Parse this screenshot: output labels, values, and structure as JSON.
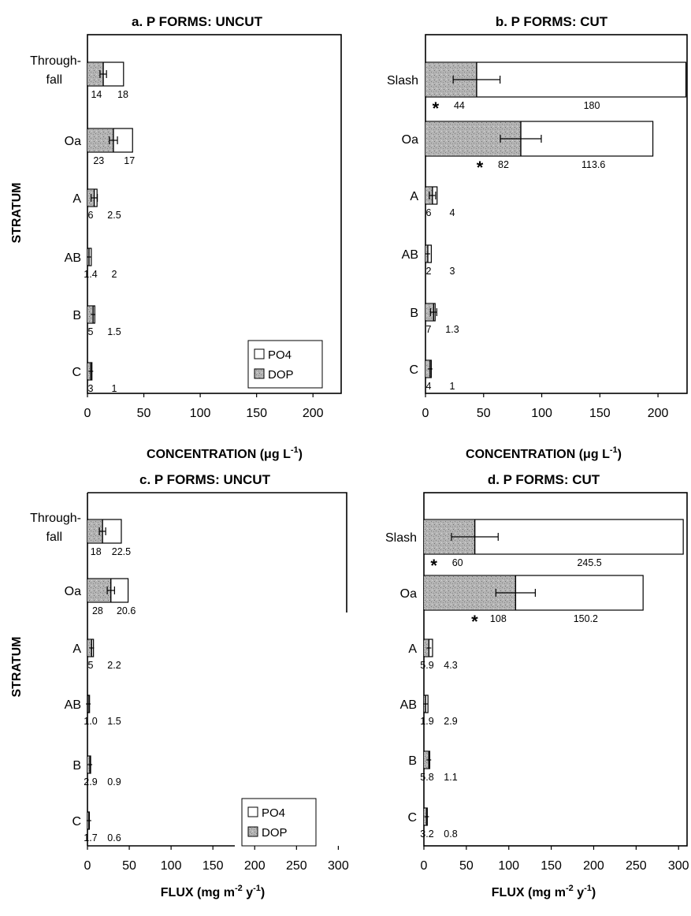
{
  "colors": {
    "po4_fill": "#ffffff",
    "dop_fill": "#a8a8a8",
    "stroke": "#000000"
  },
  "y_axis_label": "STRATUM",
  "chart_data": [
    {
      "type": "bar",
      "orientation": "horizontal",
      "stacked": true,
      "title": "a. P FORMS: UNCUT",
      "xlabel": "CONCENTRATION (μg L",
      "xlabel_sup": "-1",
      "xlabel_tail": ")",
      "ylabel": "STRATUM",
      "xlim": [
        0,
        225
      ],
      "xticks": [
        "0",
        "50",
        "100",
        "150",
        "200"
      ],
      "categories": [
        "Through-fall",
        "Oa",
        "A",
        "AB",
        "B",
        "C"
      ],
      "series": [
        {
          "name": "DOP",
          "values": [
            14,
            23,
            6,
            1.4,
            5,
            3
          ]
        },
        {
          "name": "PO4",
          "values": [
            18,
            17,
            2.5,
            2,
            1.5,
            1
          ]
        }
      ],
      "dop_labels": [
        "14",
        "23",
        "6",
        "1.4",
        "5",
        "3"
      ],
      "po4_labels": [
        "18",
        "17",
        "2.5",
        "2",
        "1.5",
        "1"
      ],
      "significant": [
        false,
        false,
        false,
        false,
        false,
        false
      ],
      "legend": {
        "position": "bottom-right",
        "entries": [
          "PO4",
          "DOP"
        ]
      },
      "grid": false
    },
    {
      "type": "bar",
      "orientation": "horizontal",
      "stacked": true,
      "title": "b. P FORMS: CUT",
      "xlabel": "CONCENTRATION (μg L",
      "xlabel_sup": "-1",
      "xlabel_tail": ")",
      "xlim": [
        0,
        225
      ],
      "xticks": [
        "0",
        "50",
        "100",
        "150",
        "200"
      ],
      "categories": [
        "Slash",
        "Oa",
        "A",
        "AB",
        "B",
        "C"
      ],
      "series": [
        {
          "name": "DOP",
          "values": [
            44,
            82,
            6,
            2,
            7,
            4
          ]
        },
        {
          "name": "PO4",
          "values": [
            180,
            113.6,
            4,
            3,
            1.3,
            1
          ]
        }
      ],
      "dop_labels": [
        "44",
        "82",
        "6",
        "2",
        "7",
        "4"
      ],
      "po4_labels": [
        "180",
        "113.6",
        "4",
        "3",
        "1.3",
        "1"
      ],
      "significant": [
        true,
        true,
        false,
        false,
        false,
        false
      ],
      "grid": false
    },
    {
      "type": "bar",
      "orientation": "horizontal",
      "stacked": true,
      "title": "c. P FORMS: UNCUT",
      "xlabel": "FLUX (mg m",
      "xlabel_sup": "-2",
      "xlabel_mid": " y",
      "xlabel_sup2": "-1",
      "xlabel_tail": ")",
      "ylabel": "STRATUM",
      "xlim": [
        0,
        310
      ],
      "xticks": [
        "0",
        "50",
        "100",
        "150",
        "200",
        "250",
        "300"
      ],
      "categories": [
        "Through-fall",
        "Oa",
        "A",
        "AB",
        "B",
        "C"
      ],
      "series": [
        {
          "name": "DOP",
          "values": [
            18,
            28,
            5,
            1.0,
            2.9,
            1.7
          ]
        },
        {
          "name": "PO4",
          "values": [
            22.5,
            20.6,
            2.2,
            1.5,
            0.9,
            0.6
          ]
        }
      ],
      "dop_labels": [
        "18",
        "28",
        "5",
        "1.0",
        "2.9",
        "1.7"
      ],
      "po4_labels": [
        "22.5",
        "20.6",
        "2.2",
        "1.5",
        "0.9",
        "0.6"
      ],
      "significant": [
        false,
        false,
        false,
        false,
        false,
        false
      ],
      "legend": {
        "position": "bottom-right",
        "entries": [
          "PO4",
          "DOP"
        ]
      },
      "grid": false
    },
    {
      "type": "bar",
      "orientation": "horizontal",
      "stacked": true,
      "title": "d. P FORMS: CUT",
      "xlabel": "FLUX (mg m",
      "xlabel_sup": "-2",
      "xlabel_mid": " y",
      "xlabel_sup2": "-1",
      "xlabel_tail": ")",
      "xlim": [
        0,
        310
      ],
      "xticks": [
        "0",
        "50",
        "100",
        "150",
        "200",
        "250",
        "300"
      ],
      "categories": [
        "Slash",
        "Oa",
        "A",
        "AB",
        "B",
        "C"
      ],
      "series": [
        {
          "name": "DOP",
          "values": [
            60,
            108,
            5.9,
            1.9,
            5.8,
            3.2
          ]
        },
        {
          "name": "PO4",
          "values": [
            245.5,
            150.2,
            4.3,
            2.9,
            1.1,
            0.8
          ]
        }
      ],
      "dop_labels": [
        "60",
        "108",
        "5.9",
        "1.9",
        "5.8",
        "3.2"
      ],
      "po4_labels": [
        "245.5",
        "150.2",
        "4.3",
        "2.9",
        "1.1",
        "0.8"
      ],
      "significant": [
        true,
        true,
        false,
        false,
        false,
        false
      ],
      "grid": false
    }
  ]
}
